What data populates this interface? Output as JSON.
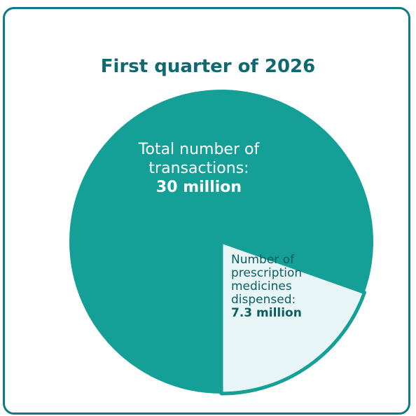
{
  "chart_data": {
    "type": "pie",
    "title": "First quarter of 2026",
    "slices": [
      {
        "label_lines": [
          "Total number of",
          "transactions:"
        ],
        "value_label": "30 million",
        "value": 30,
        "color": "#14a096"
      },
      {
        "label_lines": [
          "Number of",
          "prescription",
          "medicines",
          "dispensed:"
        ],
        "value_label": "7.3 million",
        "value": 7.3,
        "color": "#e7f5f6"
      }
    ],
    "colors": {
      "border": "#0b7c83",
      "title": "#0e6a70",
      "small_slice_outline": "#14a096"
    }
  }
}
